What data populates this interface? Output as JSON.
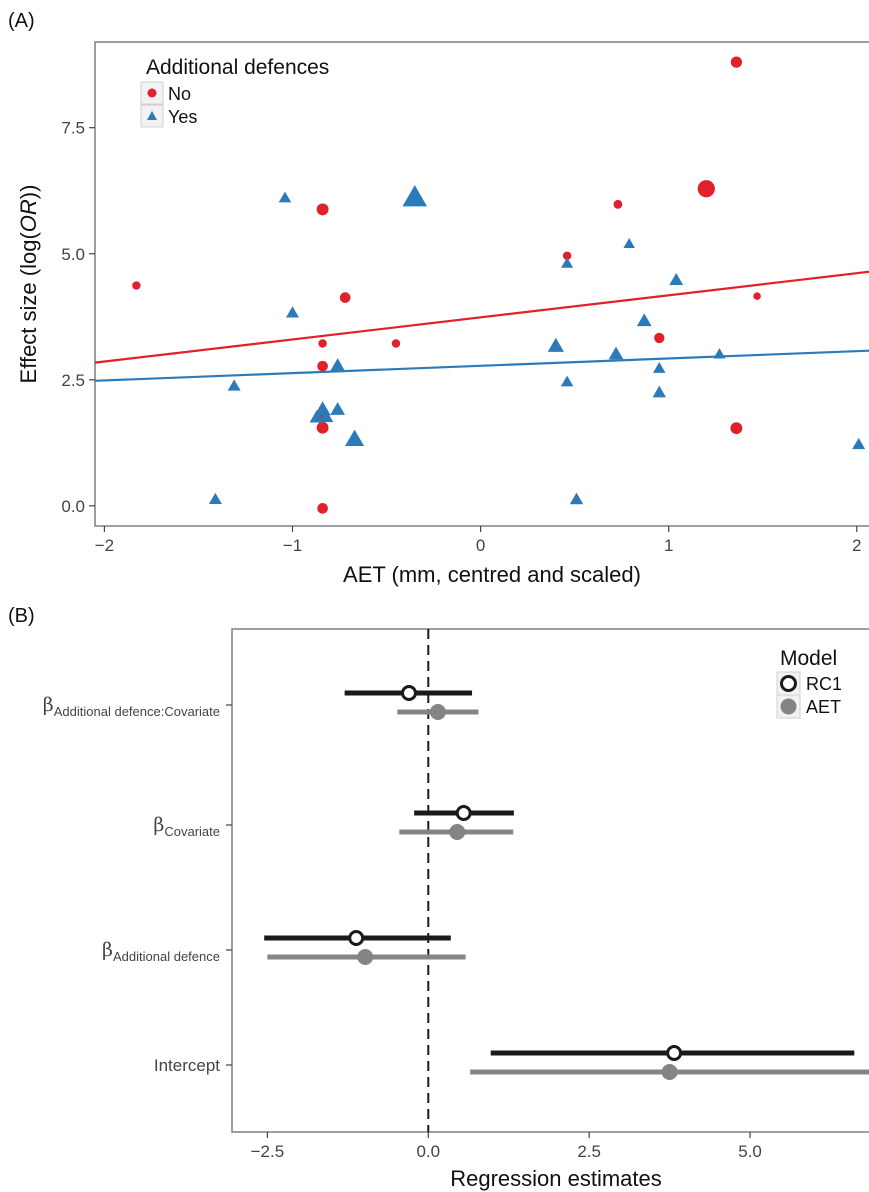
{
  "chart_data": [
    {
      "panel_label": "(A)",
      "type": "scatter",
      "xlabel": "AET (mm, centred and scaled)",
      "ylabel": "Effect size (log(OR))",
      "ylabel_parts": {
        "before": "Effect size (log(",
        "italic": "OR",
        "after": "))"
      },
      "xlim": [
        -2.05,
        2.15
      ],
      "ylim": [
        -0.4,
        9.2
      ],
      "xticks": [
        -2,
        -1,
        0,
        1,
        2
      ],
      "xtick_labels": [
        "−2",
        "−1",
        "0",
        "1",
        "2"
      ],
      "yticks": [
        0,
        2.5,
        5,
        7.5
      ],
      "ytick_labels": [
        "0.0",
        "2.5",
        "5.0",
        "7.5"
      ],
      "grid": false,
      "legend": {
        "title": "Additional defences",
        "position": "top-left",
        "entries": [
          {
            "label": "No",
            "shape": "circle",
            "color": "#e0212b"
          },
          {
            "label": "Yes",
            "shape": "triangle",
            "color": "#2b7bba"
          }
        ]
      },
      "series": [
        {
          "name": "No",
          "shape": "circle",
          "color": "#e0212b",
          "points": [
            {
              "x": -1.83,
              "y": 4.37,
              "w": 1
            },
            {
              "x": -0.84,
              "y": 5.88,
              "w": 2
            },
            {
              "x": -0.72,
              "y": 4.13,
              "w": 1.6
            },
            {
              "x": -0.84,
              "y": 3.22,
              "w": 1
            },
            {
              "x": -0.45,
              "y": 3.22,
              "w": 1
            },
            {
              "x": -0.84,
              "y": 2.77,
              "w": 1.6
            },
            {
              "x": -0.84,
              "y": 1.77,
              "w": 1.3
            },
            {
              "x": -0.84,
              "y": 1.55,
              "w": 2
            },
            {
              "x": -0.84,
              "y": -0.05,
              "w": 1.6
            },
            {
              "x": 0.46,
              "y": 4.96,
              "w": 1
            },
            {
              "x": 0.73,
              "y": 5.98,
              "w": 1.1
            },
            {
              "x": 1.2,
              "y": 6.29,
              "w": 4.2
            },
            {
              "x": 1.36,
              "y": 8.8,
              "w": 1.8
            },
            {
              "x": 0.95,
              "y": 3.33,
              "w": 1.5
            },
            {
              "x": 1.47,
              "y": 4.16,
              "w": 0.8
            },
            {
              "x": 1.36,
              "y": 1.54,
              "w": 2
            }
          ]
        },
        {
          "name": "Yes",
          "shape": "triangle",
          "color": "#2b7bba",
          "points": [
            {
              "x": -1.04,
              "y": 6.1,
              "w": 1.3
            },
            {
              "x": -0.35,
              "y": 6.1,
              "w": 5
            },
            {
              "x": -1.0,
              "y": 3.82,
              "w": 1.4
            },
            {
              "x": -1.31,
              "y": 2.37,
              "w": 1.4
            },
            {
              "x": -0.76,
              "y": 2.77,
              "w": 1.8
            },
            {
              "x": -0.84,
              "y": 1.9,
              "w": 2.2
            },
            {
              "x": -0.76,
              "y": 1.9,
              "w": 1.8
            },
            {
              "x": -0.87,
              "y": 1.75,
              "w": 1.8
            },
            {
              "x": -0.82,
              "y": 1.75,
              "w": 1.6
            },
            {
              "x": -0.67,
              "y": 1.31,
              "w": 3
            },
            {
              "x": -1.41,
              "y": 0.12,
              "w": 1.4
            },
            {
              "x": 0.46,
              "y": 4.8,
              "w": 1.2
            },
            {
              "x": 0.79,
              "y": 5.19,
              "w": 1.1
            },
            {
              "x": 1.04,
              "y": 4.47,
              "w": 1.6
            },
            {
              "x": 0.4,
              "y": 3.16,
              "w": 2.2
            },
            {
              "x": 0.87,
              "y": 3.66,
              "w": 1.8
            },
            {
              "x": 0.72,
              "y": 3.0,
              "w": 1.8
            },
            {
              "x": 0.95,
              "y": 2.72,
              "w": 1.3
            },
            {
              "x": 1.27,
              "y": 3.0,
              "w": 1.2
            },
            {
              "x": 0.46,
              "y": 2.45,
              "w": 1.3
            },
            {
              "x": 0.95,
              "y": 2.24,
              "w": 1.5
            },
            {
              "x": 0.51,
              "y": 0.12,
              "w": 1.5
            },
            {
              "x": 2.01,
              "y": 1.21,
              "w": 1.4
            }
          ]
        }
      ],
      "fit_lines": [
        {
          "name": "No",
          "color": "#e0212b",
          "x": [
            -2.05,
            2.15
          ],
          "y": [
            2.84,
            4.68
          ]
        },
        {
          "name": "Yes",
          "color": "#2b7bba",
          "x": [
            -2.05,
            2.15
          ],
          "y": [
            2.48,
            3.09
          ]
        }
      ]
    },
    {
      "panel_label": "(B)",
      "type": "forest",
      "xlabel": "Regression estimates",
      "xlim": [
        -3.05,
        7.05
      ],
      "xticks": [
        -2.5,
        0,
        2.5,
        5
      ],
      "xtick_labels": [
        "−2.5",
        "0.0",
        "2.5",
        "5.0"
      ],
      "reference_line": 0,
      "categories": [
        {
          "base": "β",
          "sub": "Additional defence:Covariate"
        },
        {
          "base": "β",
          "sub": "Covariate"
        },
        {
          "base": "β",
          "sub": "Additional defence"
        },
        {
          "base": "Intercept",
          "sub": ""
        }
      ],
      "legend": {
        "title": "Model",
        "position": "top-right",
        "entries": [
          {
            "label": "RC1",
            "color": "#1a1a1a",
            "marker": "open-circle"
          },
          {
            "label": "AET",
            "color": "#848484",
            "marker": "filled-circle"
          }
        ]
      },
      "series": [
        {
          "name": "RC1",
          "color": "#1a1a1a",
          "estimates": [
            -0.3,
            0.55,
            -1.12,
            3.82
          ],
          "lower": [
            -1.3,
            -0.22,
            -2.55,
            0.97
          ],
          "upper": [
            0.68,
            1.33,
            0.35,
            6.62
          ]
        },
        {
          "name": "AET",
          "color": "#848484",
          "estimates": [
            0.15,
            0.45,
            -0.98,
            3.75
          ],
          "lower": [
            -0.48,
            -0.45,
            -2.5,
            0.65
          ],
          "upper": [
            0.78,
            1.32,
            0.58,
            6.85
          ]
        }
      ]
    }
  ]
}
